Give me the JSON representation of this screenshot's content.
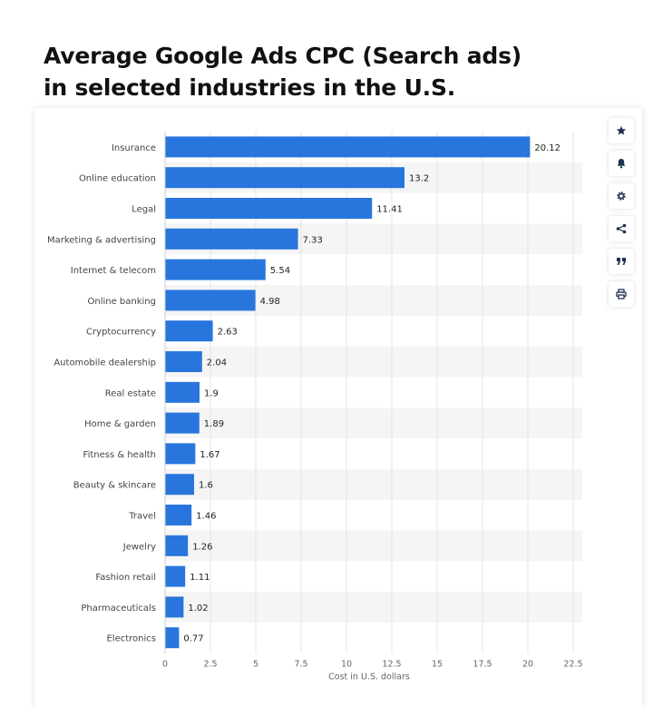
{
  "page": {
    "title_line1": "Average Google Ads CPC (Search ads)",
    "title_line2": "in selected industries in the U.S."
  },
  "toolbar": {
    "items": [
      {
        "icon": "star-icon",
        "name": "favorite-button"
      },
      {
        "icon": "bell-icon",
        "name": "notification-button"
      },
      {
        "icon": "gear-icon",
        "name": "settings-button"
      },
      {
        "icon": "share-icon",
        "name": "share-button"
      },
      {
        "icon": "quote-icon",
        "name": "cite-button"
      },
      {
        "icon": "print-icon",
        "name": "print-button"
      }
    ]
  },
  "colors": {
    "bar": "#2876dd",
    "stripe": "#f5f5f5",
    "grid": "#e4e4e4",
    "toolbar_icon": "#1e3350"
  },
  "chart_data": {
    "type": "bar",
    "orientation": "horizontal",
    "categories": [
      "Insurance",
      "Online education",
      "Legal",
      "Marketing & advertising",
      "Internet & telecom",
      "Online banking",
      "Cryptocurrency",
      "Automobile dealership",
      "Real estate",
      "Home & garden",
      "Fitness & health",
      "Beauty & skincare",
      "Travel",
      "Jewelry",
      "Fashion retail",
      "Pharmaceuticals",
      "Electronics"
    ],
    "values": [
      20.12,
      13.2,
      11.41,
      7.33,
      5.54,
      4.98,
      2.63,
      2.04,
      1.9,
      1.89,
      1.67,
      1.6,
      1.46,
      1.26,
      1.11,
      1.02,
      0.77
    ],
    "value_labels": [
      "20.12",
      "13.2",
      "11.41",
      "7.33",
      "5.54",
      "4.98",
      "2.63",
      "2.04",
      "1.9",
      "1.89",
      "1.67",
      "1.6",
      "1.46",
      "1.26",
      "1.11",
      "1.02",
      "0.77"
    ],
    "xlabel": "Cost in U.S. dollars",
    "ylabel": "",
    "xlim": [
      0,
      22.5
    ],
    "xticks": [
      "0",
      "2.5",
      "5",
      "7.5",
      "10",
      "12.5",
      "15",
      "17.5",
      "20",
      "22.5"
    ],
    "grid": true,
    "legend": "none"
  }
}
